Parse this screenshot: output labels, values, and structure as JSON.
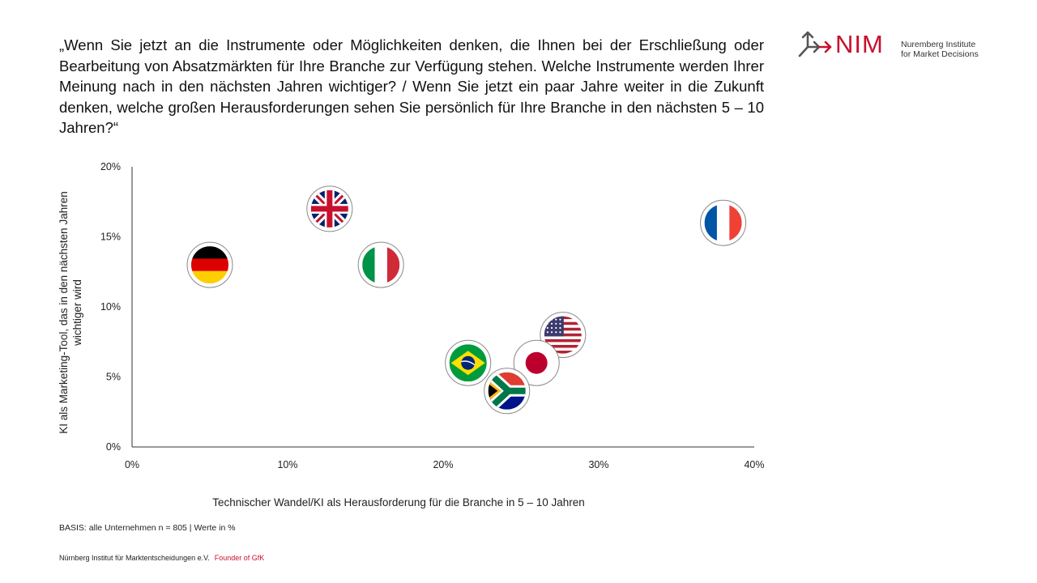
{
  "question": "„Wenn Sie jetzt an die Instrumente oder Möglichkeiten denken, die Ihnen bei der Erschließung oder Bearbeitung von Absatzmärkten für Ihre Branche zur Verfügung stehen. Welche Instrumente werden Ihrer Meinung nach in den nächsten Jahren wichtiger? / Wenn Sie jetzt ein paar Jahre weiter in die Zukunft denken, welche großen Herausforderungen sehen Sie persönlich für Ihre Branche in den nächsten 5 – 10 Jahren?“",
  "logo": {
    "word": "NIM",
    "tag_line1": "Nuremberg Institute",
    "tag_line2": "for Market Decisions",
    "accent": "#c8102e"
  },
  "chart_data": {
    "type": "scatter",
    "xlabel": "Technischer Wandel/KI als Herausforderung für die Branche in 5 – 10 Jahren",
    "ylabel_line1": "KI als Marketing-Tool, das in den nächsten Jahren",
    "ylabel_line2": "wichtiger wird",
    "xlim": [
      0,
      40
    ],
    "ylim": [
      0,
      20
    ],
    "x_ticks": [
      {
        "value": 0,
        "label": "0%"
      },
      {
        "value": 10,
        "label": "10%"
      },
      {
        "value": 20,
        "label": "20%"
      },
      {
        "value": 30,
        "label": "30%"
      },
      {
        "value": 40,
        "label": "40%"
      }
    ],
    "y_ticks": [
      {
        "value": 0,
        "label": "0%"
      },
      {
        "value": 5,
        "label": "5%"
      },
      {
        "value": 10,
        "label": "10%"
      },
      {
        "value": 15,
        "label": "15%"
      },
      {
        "value": 20,
        "label": "20%"
      }
    ],
    "grid": false,
    "legend": "none",
    "points": [
      {
        "country": "germany",
        "flag": "de-flag-icon",
        "x": 5,
        "y": 13
      },
      {
        "country": "uk",
        "flag": "gb-flag-icon",
        "x": 12.7,
        "y": 17
      },
      {
        "country": "italy",
        "flag": "it-flag-icon",
        "x": 16,
        "y": 13
      },
      {
        "country": "france",
        "flag": "fr-flag-icon",
        "x": 38,
        "y": 16
      },
      {
        "country": "usa",
        "flag": "us-flag-icon",
        "x": 27.7,
        "y": 8
      },
      {
        "country": "japan",
        "flag": "jp-flag-icon",
        "x": 26,
        "y": 6
      },
      {
        "country": "brazil",
        "flag": "br-flag-icon",
        "x": 21.6,
        "y": 6
      },
      {
        "country": "south-africa",
        "flag": "za-flag-icon",
        "x": 24.1,
        "y": 4
      }
    ]
  },
  "basis": "BASIS: alle Unternehmen   n = 805  |  Werte  in %",
  "footer": {
    "org": "Nürnberg Institut für Marktentscheidungen e.V.",
    "founder": "Founder of GfK"
  }
}
